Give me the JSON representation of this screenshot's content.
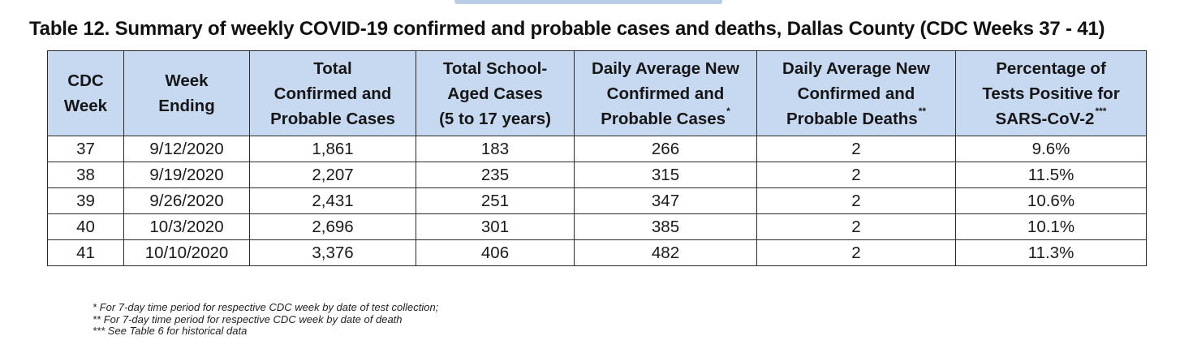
{
  "title": "Table 12. Summary of weekly COVID-19 confirmed and probable cases and deaths, Dallas County (CDC Weeks 37 - 41)",
  "table": {
    "headers": [
      {
        "lines": [
          "CDC",
          "Week"
        ],
        "sup": ""
      },
      {
        "lines": [
          "Week",
          "Ending"
        ],
        "sup": ""
      },
      {
        "lines": [
          "Total",
          "Confirmed and",
          "Probable Cases"
        ],
        "sup": ""
      },
      {
        "lines": [
          "Total School-",
          "Aged Cases",
          "(5 to 17 years)"
        ],
        "sup": ""
      },
      {
        "lines": [
          "Daily Average New",
          "Confirmed and",
          "Probable Cases"
        ],
        "sup": "*"
      },
      {
        "lines": [
          "Daily Average New",
          "Confirmed and",
          "Probable Deaths"
        ],
        "sup": "**"
      },
      {
        "lines": [
          "Percentage of",
          "Tests Positive for",
          "SARS-CoV-2"
        ],
        "sup": "***"
      }
    ],
    "rows": [
      [
        "37",
        "9/12/2020",
        "1,861",
        "183",
        "266",
        "2",
        "9.6%"
      ],
      [
        "38",
        "9/19/2020",
        "2,207",
        "235",
        "315",
        "2",
        "11.5%"
      ],
      [
        "39",
        "9/26/2020",
        "2,431",
        "251",
        "347",
        "2",
        "10.6%"
      ],
      [
        "40",
        "10/3/2020",
        "2,696",
        "301",
        "385",
        "2",
        "10.1%"
      ],
      [
        "41",
        "10/10/2020",
        "3,376",
        "406",
        "482",
        "2",
        "11.3%"
      ]
    ]
  },
  "footnotes": [
    "* For 7-day time period for respective CDC week by date of test collection;",
    "** For 7-day time period for respective CDC week by date of death",
    "*** See Table 6 for historical data"
  ]
}
